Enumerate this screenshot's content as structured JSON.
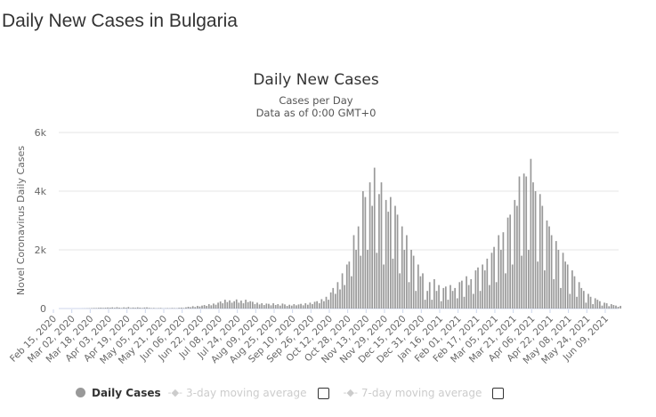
{
  "page_title": "Daily New Cases in Bulgaria",
  "chart_data": {
    "type": "bar",
    "title": "Daily New Cases",
    "subtitle": [
      "Cases per Day",
      "Data as of 0:00 GMT+0"
    ],
    "ylabel": "Novel Coronavirus Daily Cases",
    "xlabel": "",
    "ylim": [
      0,
      6000
    ],
    "yticks": [
      {
        "v": 0,
        "label": "0"
      },
      {
        "v": 2000,
        "label": "2k"
      },
      {
        "v": 4000,
        "label": "4k"
      },
      {
        "v": 6000,
        "label": "6k"
      }
    ],
    "grid": true,
    "start_date": "Feb 15, 2020",
    "days_per_value": 2,
    "total_days": 487,
    "xtick_interval_days": 16,
    "xtick_labels": [
      "Feb 15, 2020",
      "Mar 02, 2020",
      "Mar 18, 2020",
      "Apr 03, 2020",
      "Apr 19, 2020",
      "May 05, 2020",
      "May 21, 2020",
      "Jun 06, 2020",
      "Jun 22, 2020",
      "Jul 08, 2020",
      "Jul 24, 2020",
      "Aug 09, 2020",
      "Aug 25, 2020",
      "Sep 10, 2020",
      "Sep 26, 2020",
      "Oct 12, 2020",
      "Oct 28, 2020",
      "Nov 13, 2020",
      "Nov 29, 2020",
      "Dec 15, 2020",
      "Dec 31, 2020",
      "Jan 16, 2021",
      "Feb 01, 2021",
      "Feb 17, 2021",
      "Mar 05, 2021",
      "Mar 21, 2021",
      "Apr 06, 2021",
      "Apr 22, 2021",
      "May 08, 2021",
      "May 24, 2021",
      "Jun 09, 2021"
    ],
    "series": [
      {
        "name": "Daily Cases",
        "color": "#999999",
        "values": [
          0,
          0,
          0,
          0,
          0,
          0,
          0,
          0,
          0,
          0,
          2,
          4,
          6,
          10,
          15,
          20,
          18,
          25,
          30,
          22,
          28,
          35,
          30,
          40,
          25,
          45,
          30,
          20,
          40,
          30,
          50,
          20,
          35,
          25,
          40,
          30,
          20,
          35,
          40,
          25,
          15,
          20,
          10,
          15,
          20,
          5,
          10,
          15,
          10,
          20,
          15,
          10,
          25,
          30,
          20,
          40,
          60,
          45,
          80,
          50,
          90,
          70,
          100,
          120,
          90,
          150,
          110,
          170,
          130,
          200,
          240,
          180,
          300,
          220,
          280,
          200,
          250,
          310,
          200,
          270,
          180,
          300,
          220,
          250,
          230,
          150,
          200,
          140,
          180,
          120,
          170,
          160,
          110,
          180,
          120,
          150,
          100,
          170,
          140,
          90,
          130,
          100,
          150,
          110,
          140,
          160,
          110,
          180,
          130,
          200,
          150,
          230,
          250,
          180,
          320,
          250,
          400,
          300,
          550,
          700,
          500,
          900,
          650,
          1200,
          800,
          1500,
          1600,
          1100,
          2500,
          2000,
          2800,
          1800,
          4000,
          3800,
          2000,
          4300,
          3500,
          4800,
          1900,
          3900,
          4300,
          1500,
          3700,
          3300,
          3800,
          1700,
          3500,
          3200,
          1200,
          2800,
          2000,
          2500,
          900,
          2000,
          1800,
          600,
          1500,
          1100,
          1200,
          300,
          600,
          900,
          300,
          1000,
          600,
          800,
          250,
          700,
          750,
          300,
          800,
          600,
          700,
          350,
          900,
          950,
          400,
          1100,
          800,
          1000,
          500,
          1300,
          1400,
          600,
          1500,
          1300,
          1700,
          800,
          1900,
          2100,
          900,
          2500,
          2000,
          2600,
          1200,
          3100,
          3200,
          1500,
          3700,
          3500,
          4500,
          1800,
          4600,
          4500,
          2000,
          5100,
          4300,
          4000,
          1600,
          3900,
          3500,
          1300,
          3000,
          2800,
          2500,
          1000,
          2300,
          2000,
          700,
          1900,
          1600,
          1500,
          500,
          1300,
          1100,
          400,
          900,
          700,
          600,
          200,
          500,
          400,
          150,
          350,
          300,
          250,
          100,
          200,
          180,
          80,
          150,
          120,
          100,
          60,
          90
        ]
      }
    ],
    "legend": [
      {
        "label": "Daily Cases",
        "active": true
      },
      {
        "label": "3-day moving average",
        "active": false
      },
      {
        "label": "7-day moving average",
        "active": false
      }
    ],
    "legend_placement": "bottom"
  }
}
